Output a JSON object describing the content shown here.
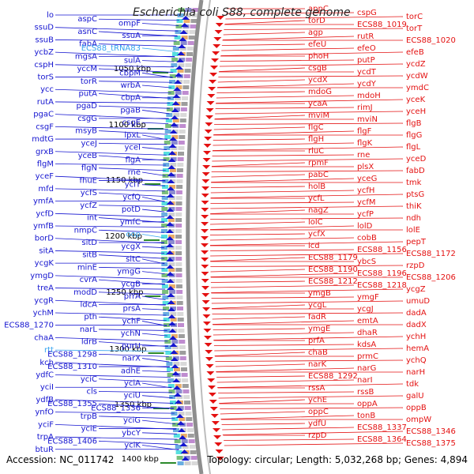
{
  "title": "Escherichia coli S88, complete genome",
  "footer": {
    "accession": "Accession: NC_011742",
    "summary": "Topology: circular; Length: 5,032,268 bp; Genes: 4,894"
  },
  "colors": {
    "plus_strand": "#1515d0",
    "minus_strand": "#e41111",
    "rna": "#34a3ef",
    "backbone": "#8e8e8e",
    "tick": "#2b8a2b"
  },
  "ticks": [
    "1050 kbp",
    "1100 kbp",
    "1150 kbp",
    "1200 kbp",
    "1250 kbp",
    "1300 kbp",
    "1350 kbp",
    "1400 kbp"
  ],
  "left_labels": [
    "lo",
    "aspC",
    "ompF",
    "ssuD",
    "asnC",
    "ssuA",
    "ssuB",
    "fabA",
    "ECS88_tRNA83",
    "ycbZ",
    "mgsA",
    "sulA",
    "cspH",
    "yccM",
    "cbpM",
    "torS",
    "torR",
    "wrbA",
    "ycc",
    "putA",
    "cbpA",
    "rutA",
    "pgaD",
    "pgaB",
    "pgaC",
    "csgG",
    "csgE",
    "csgF",
    "msyB",
    "lpxL",
    "mdtG",
    "yceJ",
    "yceI",
    "grxB",
    "yceB",
    "flgA",
    "flgM",
    "flgN",
    "rne",
    "yceF",
    "fhuE",
    "yciT",
    "mfd",
    "ycfS",
    "ycfQ",
    "ymfA",
    "ycfZ",
    "potD",
    "ycfD",
    "int",
    "ymfC",
    "ymfB",
    "nmpC",
    "oop",
    "borD",
    "sitD",
    "ycgX",
    "sitA",
    "sitB",
    "sitC",
    "ycgK",
    "minE",
    "ymgG",
    "ymgD",
    "cvrA",
    "ycgB",
    "treA",
    "modD",
    "prrA",
    "ycgR",
    "ldcA",
    "prsA",
    "ychM",
    "pth",
    "ychF",
    "ECS88_1270",
    "narL",
    "ychN",
    "chaA",
    "ldrB",
    "purU",
    "rtt",
    "ECS88_1298",
    "narX",
    "kch",
    "ECS88_1310",
    "adhE",
    "ydfC",
    "yciC",
    "yciA",
    "yciI",
    "cls",
    "yciU",
    "ydfB",
    "ECS88_1355",
    "ECS88_1336",
    "ynfO",
    "trpB",
    "yciG",
    "yciF",
    "yciE",
    "ybcY",
    "trpA",
    "ECS88_1406",
    "yciK",
    "btuR"
  ],
  "right_labels": [
    "appC",
    "cspG",
    "torC",
    "torD",
    "ECS88_1019",
    "torT",
    "agp",
    "rutR",
    "ECS88_1020",
    "efeU",
    "efeO",
    "efeB",
    "phoH",
    "putP",
    "ycdZ",
    "csgB",
    "ycdT",
    "ycdW",
    "ycdX",
    "ycdY",
    "ymdC",
    "mdoG",
    "mdoH",
    "yceK",
    "ycaA",
    "rimJ",
    "yceH",
    "mviM",
    "mviN",
    "flgB",
    "flgC",
    "flgF",
    "flgG",
    "flgH",
    "flgK",
    "flgL",
    "rluC",
    "rne",
    "yceD",
    "rpmF",
    "plsX",
    "fabD",
    "pabC",
    "yceG",
    "tmk",
    "holB",
    "ycfH",
    "ptsG",
    "ycfL",
    "ycfM",
    "thiK",
    "nagZ",
    "ycfP",
    "ndh",
    "lolC",
    "lolD",
    "lolE",
    "ycfX",
    "cobB",
    "pepT",
    "icd",
    "ECS88_1156",
    "ECS88_1172",
    "ECS88_1179",
    "ybcS",
    "rzpD",
    "ECS88_1190",
    "ECS88_1196",
    "ECS88_1206",
    "ECS88_1212",
    "ECS88_1218",
    "ycgZ",
    "ymgB",
    "ymgF",
    "umuD",
    "ycgL",
    "ycgJ",
    "dadA",
    "fadR",
    "emtA",
    "dadX",
    "ymgE",
    "dhaR",
    "ychH",
    "prfA",
    "kdsA",
    "hemA",
    "chaB",
    "prmC",
    "ychQ",
    "narK",
    "narG",
    "narH",
    "ECS88_1292",
    "narI",
    "tdk",
    "rssA",
    "rssB",
    "galU",
    "ychE",
    "oppA",
    "oppB",
    "oppC",
    "tonB",
    "ompW",
    "ydfU",
    "ECS88_1337",
    "ECS88_1346",
    "rzpD",
    "ECS88_1364",
    "ECS88_1375"
  ]
}
